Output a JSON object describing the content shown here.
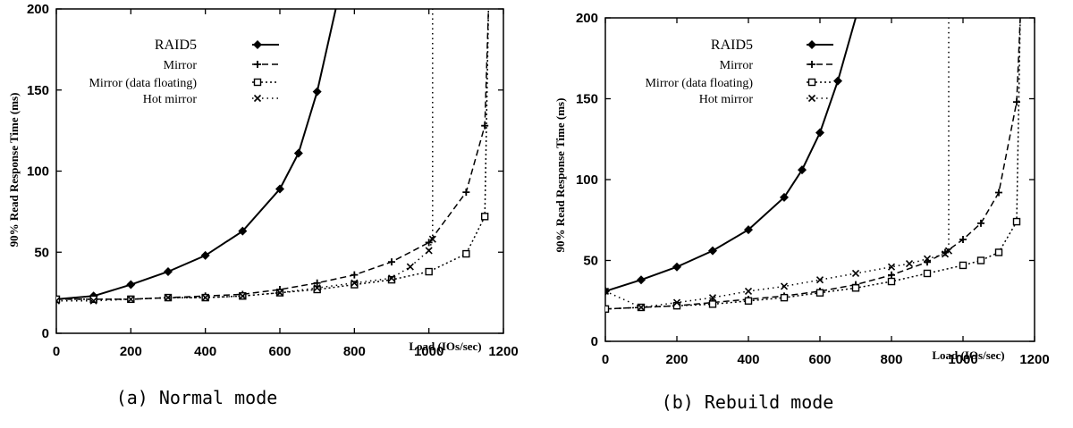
{
  "chart_data": [
    {
      "type": "line",
      "caption": "(a) Normal mode",
      "xlabel": "Load (IOs/sec)",
      "ylabel": "90% Read Response Time (ms)",
      "xlim": [
        0,
        1200
      ],
      "ylim": [
        0,
        200
      ],
      "xticks": [
        "0",
        "200",
        "400",
        "600",
        "800",
        "1000",
        "1200"
      ],
      "yticks": [
        "0",
        "50",
        "100",
        "150",
        "200"
      ],
      "legend_placement": "top-left",
      "series": [
        {
          "name": "RAID5",
          "marker": "diamond",
          "dash": "solid",
          "x": [
            0,
            100,
            200,
            300,
            400,
            500,
            600,
            650,
            700,
            750
          ],
          "y": [
            21,
            23,
            30,
            38,
            48,
            63,
            89,
            111,
            149,
            200
          ]
        },
        {
          "name": "Mirror",
          "marker": "plus",
          "dash": "dashed",
          "x": [
            0,
            100,
            200,
            300,
            400,
            500,
            600,
            700,
            800,
            900,
            1000,
            1100,
            1150,
            1160
          ],
          "y": [
            21,
            21,
            21,
            22,
            23,
            24,
            27,
            31,
            36,
            44,
            56,
            87,
            128,
            200
          ]
        },
        {
          "name": "Mirror (data floating)",
          "marker": "square",
          "dash": "dotted",
          "x": [
            0,
            100,
            200,
            300,
            400,
            500,
            600,
            700,
            800,
            900,
            1000,
            1100,
            1150,
            1160
          ],
          "y": [
            21,
            21,
            21,
            22,
            22,
            23,
            25,
            27,
            30,
            33,
            38,
            49,
            72,
            200
          ]
        },
        {
          "name": "Hot mirror",
          "marker": "x",
          "dash": "sparse-dotted",
          "x": [
            0,
            100,
            200,
            300,
            400,
            500,
            600,
            700,
            800,
            900,
            950,
            1000,
            1010,
            1010
          ],
          "y": [
            20,
            20,
            21,
            22,
            22,
            23,
            25,
            28,
            31,
            34,
            41,
            51,
            58,
            200
          ]
        }
      ]
    },
    {
      "type": "line",
      "caption": "(b) Rebuild mode",
      "xlabel": "Load (IOs/sec)",
      "ylabel": "90% Read Response Time (ms)",
      "xlim": [
        0,
        1200
      ],
      "ylim": [
        0,
        200
      ],
      "xticks": [
        "0",
        "200",
        "400",
        "600",
        "800",
        "1000",
        "1200"
      ],
      "yticks": [
        "0",
        "50",
        "100",
        "150",
        "200"
      ],
      "legend_placement": "top-left",
      "series": [
        {
          "name": "RAID5",
          "marker": "diamond",
          "dash": "solid",
          "x": [
            0,
            100,
            200,
            300,
            400,
            500,
            550,
            600,
            650,
            700
          ],
          "y": [
            31,
            38,
            46,
            56,
            69,
            89,
            106,
            129,
            161,
            200
          ]
        },
        {
          "name": "Mirror",
          "marker": "plus",
          "dash": "dashed",
          "x": [
            0,
            100,
            200,
            300,
            400,
            500,
            600,
            700,
            800,
            900,
            950,
            1000,
            1050,
            1100,
            1150,
            1160
          ],
          "y": [
            20,
            21,
            22,
            24,
            26,
            28,
            31,
            35,
            41,
            49,
            55,
            63,
            73,
            92,
            148,
            200
          ]
        },
        {
          "name": "Mirror (data floating)",
          "marker": "square",
          "dash": "dotted",
          "x": [
            0,
            100,
            200,
            300,
            400,
            500,
            600,
            700,
            800,
            900,
            1000,
            1050,
            1100,
            1150,
            1160
          ],
          "y": [
            20,
            21,
            22,
            23,
            25,
            27,
            30,
            33,
            37,
            42,
            47,
            50,
            55,
            74,
            200
          ]
        },
        {
          "name": "Hot mirror",
          "marker": "x",
          "dash": "sparse-dotted",
          "x": [
            0,
            100,
            200,
            300,
            400,
            500,
            600,
            700,
            800,
            850,
            900,
            950,
            960,
            960
          ],
          "y": [
            31,
            21,
            24,
            27,
            31,
            34,
            38,
            42,
            46,
            48,
            51,
            54,
            56,
            200
          ]
        }
      ]
    }
  ]
}
